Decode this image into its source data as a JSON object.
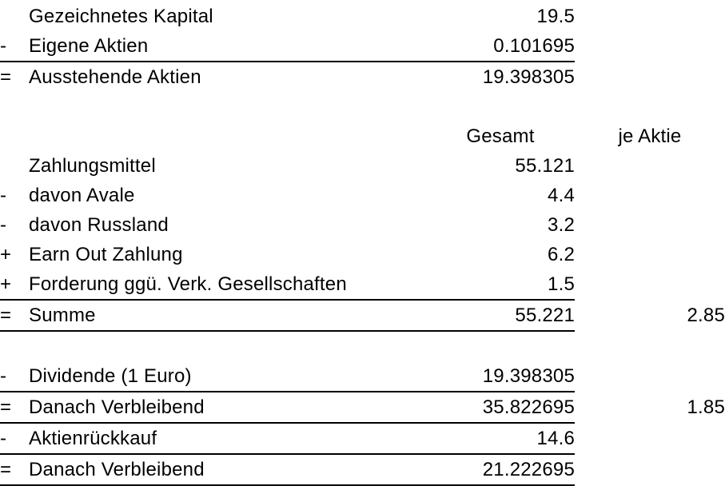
{
  "table": {
    "headers": {
      "total": "Gesamt",
      "per_share": "je Aktie"
    },
    "rows": [
      {
        "type": "data",
        "op": "",
        "label": "Gezeichnetes Kapital",
        "total": "19.5",
        "per_share": "",
        "underline": false
      },
      {
        "type": "data",
        "op": "-",
        "label": "Eigene Aktien",
        "total": "0.101695",
        "per_share": "",
        "underline": true
      },
      {
        "type": "data",
        "op": "=",
        "label": "Ausstehende Aktien",
        "total": "19.398305",
        "per_share": "",
        "underline": false
      },
      {
        "type": "blank"
      },
      {
        "type": "header"
      },
      {
        "type": "data",
        "op": "",
        "label": "Zahlungsmittel",
        "total": "55.121",
        "per_share": "",
        "underline": false
      },
      {
        "type": "data",
        "op": "-",
        "label": "davon Avale",
        "total": "4.4",
        "per_share": "",
        "underline": false
      },
      {
        "type": "data",
        "op": "-",
        "label": "davon Russland",
        "total": "3.2",
        "per_share": "",
        "underline": false
      },
      {
        "type": "data",
        "op": "+",
        "label": "Earn Out Zahlung",
        "total": "6.2",
        "per_share": "",
        "underline": false
      },
      {
        "type": "data",
        "op": "+",
        "label": "Forderung ggü. Verk. Gesellschaften",
        "total": "1.5",
        "per_share": "",
        "underline": true
      },
      {
        "type": "data",
        "op": "=",
        "label": "Summe",
        "total": "55.221",
        "per_share": "2.85",
        "underline": true
      },
      {
        "type": "blank"
      },
      {
        "type": "data",
        "op": "-",
        "label": "Dividende (1 Euro)",
        "total": "19.398305",
        "per_share": "",
        "underline": true
      },
      {
        "type": "data",
        "op": "=",
        "label": "Danach Verbleibend",
        "total": "35.822695",
        "per_share": "1.85",
        "underline": true
      },
      {
        "type": "data",
        "op": "-",
        "label": "Aktienrückkauf",
        "total": "14.6",
        "per_share": "",
        "underline": true
      },
      {
        "type": "data",
        "op": "=",
        "label": "Danach Verbleibend",
        "total": "21.222695",
        "per_share": "",
        "underline": true
      }
    ],
    "text_color": "#000000",
    "background_color": "#ffffff",
    "rule_color": "#000000"
  }
}
